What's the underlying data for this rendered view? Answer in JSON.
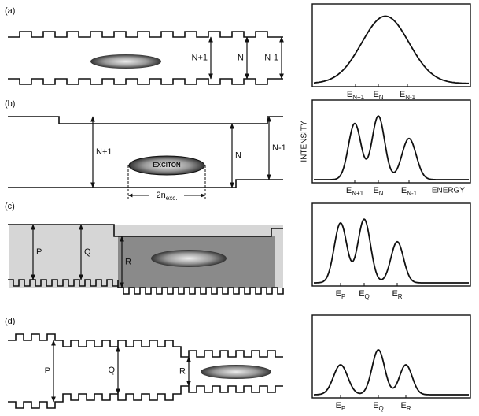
{
  "panels": [
    {
      "label": "(a)",
      "widths": [
        "N+1",
        "N",
        "N-1"
      ],
      "energies": [
        {
          "base": "E",
          "sub": "N+1"
        },
        {
          "base": "E",
          "sub": "N"
        },
        {
          "base": "E",
          "sub": "N-1"
        }
      ]
    },
    {
      "label": "(b)",
      "widths": [
        "N+1",
        "N",
        "N-1"
      ],
      "exciton": "EXCITON",
      "length": {
        "base": "2n",
        "sub": "exc."
      },
      "y_axis": "INTENSITY",
      "x_axis": "ENERGY",
      "energies": [
        {
          "base": "E",
          "sub": "N+1"
        },
        {
          "base": "E",
          "sub": "N"
        },
        {
          "base": "E",
          "sub": "N-1"
        }
      ]
    },
    {
      "label": "(c)",
      "widths": [
        "P",
        "Q",
        "R"
      ],
      "energies": [
        {
          "base": "E",
          "sub": "P"
        },
        {
          "base": "E",
          "sub": "Q"
        },
        {
          "base": "E",
          "sub": "R"
        }
      ]
    },
    {
      "label": "(d)",
      "widths": [
        "P",
        "Q",
        "R"
      ],
      "energies": [
        {
          "base": "E",
          "sub": "P"
        },
        {
          "base": "E",
          "sub": "Q"
        },
        {
          "base": "E",
          "sub": "R"
        }
      ]
    }
  ]
}
